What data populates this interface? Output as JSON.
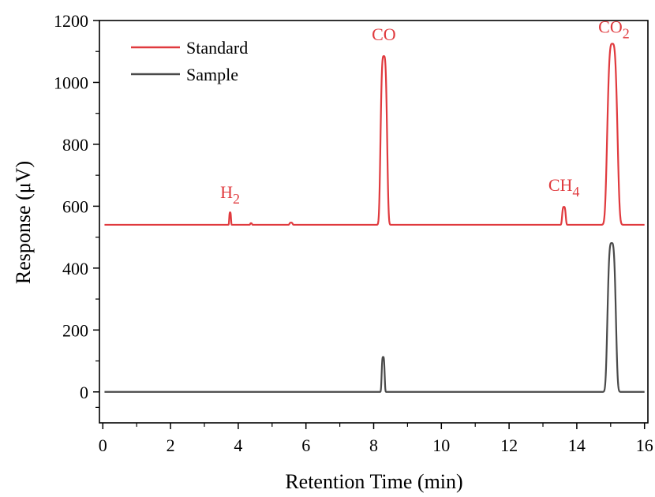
{
  "chart_data": {
    "type": "line",
    "title": "",
    "xlabel": "Retention Time (min)",
    "ylabel": "Response (μV)",
    "xlim": [
      -0.1,
      16.1
    ],
    "ylim": [
      -100,
      1200
    ],
    "xticks": [
      0,
      2,
      4,
      6,
      8,
      10,
      12,
      14,
      16
    ],
    "yticks": [
      0,
      200,
      400,
      600,
      800,
      1000,
      1200
    ],
    "grid": false,
    "legend_position": "top-left",
    "series": [
      {
        "name": "Standard",
        "color": "#e03a3e",
        "baseline": 540,
        "peaks": [
          {
            "label": "H",
            "label_sub": "2",
            "x": 3.76,
            "height": 40,
            "width": 0.03
          },
          {
            "x": 4.38,
            "height": 5,
            "width": 0.03
          },
          {
            "x": 5.56,
            "height": 7,
            "width": 0.05
          },
          {
            "label": "CO",
            "label_sub": "",
            "x": 8.3,
            "height": 545,
            "width": 0.11
          },
          {
            "label": "CH",
            "label_sub": "4",
            "x": 13.62,
            "height": 58,
            "width": 0.06
          },
          {
            "label": "CO",
            "label_sub": "2",
            "x": 15.05,
            "height": 585,
            "width": 0.17
          }
        ]
      },
      {
        "name": "Sample",
        "color": "#4a4a4a",
        "baseline": 0,
        "peaks": [
          {
            "x": 8.28,
            "height": 113,
            "width": 0.05
          },
          {
            "x": 15.03,
            "height": 481,
            "width": 0.14
          }
        ]
      }
    ]
  }
}
